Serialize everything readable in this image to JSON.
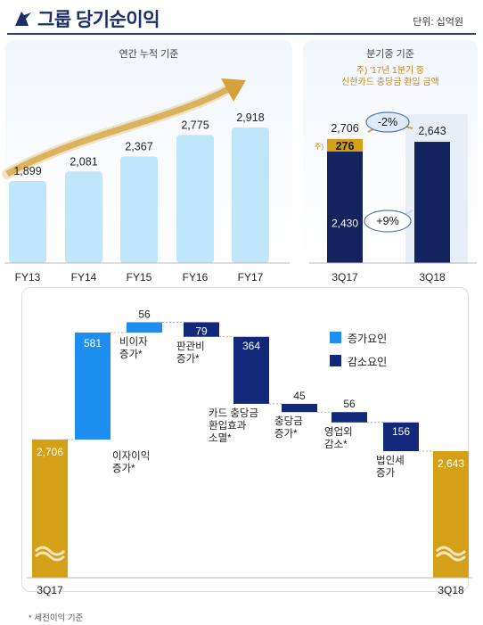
{
  "header": {
    "title": "그룹 당기순이익",
    "unit": "단위: 십억원"
  },
  "annual": {
    "subtitle": "연간 누적 기준",
    "chart_data": {
      "type": "bar",
      "categories": [
        "FY13",
        "FY14",
        "FY15",
        "FY16",
        "FY17"
      ],
      "values": [
        1899,
        2081,
        2367,
        2775,
        2918
      ],
      "value_labels": [
        "1,899",
        "2,081",
        "2,367",
        "2,775",
        "2,918"
      ],
      "bar_color": "#bfe6fa",
      "arrow_color": "#d4a13a"
    }
  },
  "quarterly": {
    "subtitle": "분기중 기준",
    "note_line1": "주) '17년 1분기 중",
    "note_line2": "신한카드 충당금 환입 금액",
    "chart_data": {
      "type": "bar",
      "categories": [
        "3Q17",
        "3Q18"
      ],
      "series": [
        {
          "values": [
            2430,
            2643
          ],
          "value_labels": [
            "2,430",
            "2,643"
          ],
          "color": "#12235e"
        },
        {
          "values": [
            276,
            0
          ],
          "value_labels": [
            "276",
            ""
          ],
          "color": "#d4a017"
        }
      ],
      "totals": [
        "2,706",
        "2,643"
      ],
      "annotations": {
        "change_total": "-2%",
        "change_base": "+9%",
        "note_marker": "주)"
      }
    }
  },
  "waterfall": {
    "legend": {
      "increase": "증가요인",
      "decrease": "감소요인",
      "increase_color": "#1e8ef0",
      "decrease_color": "#12297a"
    },
    "chart_data": {
      "type": "bar",
      "categories": [
        "3Q17",
        "이자이익 증가*",
        "비이자 증가*",
        "판관비 증가*",
        "카드 충당금 환입효과 소멸*",
        "충당금 증가*",
        "영업외 감소*",
        "법인세 증가",
        "3Q18"
      ],
      "label_lines": [
        [
          "3Q17"
        ],
        [
          "이자이익",
          "증가*"
        ],
        [
          "비이자",
          "증가*"
        ],
        [
          "판관비",
          "증가*"
        ],
        [
          "카드 충당금",
          "환입효과",
          "소멸*"
        ],
        [
          "충당금",
          "증가*"
        ],
        [
          "영업외",
          "감소*"
        ],
        [
          "법인세",
          "증가"
        ],
        [
          "3Q18"
        ]
      ],
      "values": [
        2706,
        581,
        56,
        -79,
        -364,
        -45,
        -56,
        -156,
        2643
      ],
      "value_labels": [
        "2,706",
        "581",
        "56",
        "79",
        "364",
        "45",
        "56",
        "156",
        "2,643"
      ],
      "kinds": [
        "total",
        "increase",
        "increase",
        "decrease",
        "decrease",
        "decrease",
        "decrease",
        "decrease",
        "total"
      ],
      "total_color": "#d4a017"
    },
    "footnote": "* 세전이익 기준"
  }
}
